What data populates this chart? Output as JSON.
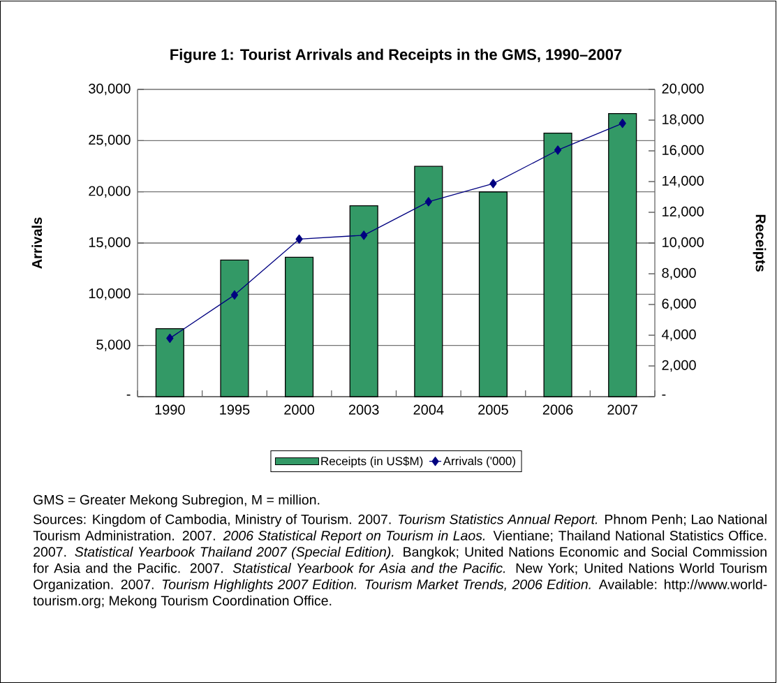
{
  "chart_data": {
    "type": "bar",
    "title": "Figure 1: Tourist Arrivals and Receipts in the GMS, 1990–2007",
    "categories": [
      "1990",
      "1995",
      "2000",
      "2003",
      "2004",
      "2005",
      "2006",
      "2007"
    ],
    "series": [
      {
        "name": "Receipts (in US$M)",
        "axis": "y2",
        "color": "#339966",
        "values": [
          4430,
          8890,
          9070,
          12430,
          14990,
          13330,
          17150,
          18430
        ]
      },
      {
        "name": "Arrivals ('000)",
        "type": "line",
        "color": "#000080",
        "values": [
          5700,
          9930,
          15380,
          15760,
          19030,
          20800,
          24070,
          26690
        ]
      }
    ],
    "ylabel": "Arrivals",
    "y2label": "Receipts",
    "ylim": [
      0,
      30000
    ],
    "yticks": [
      {
        "value": 0,
        "label": "-"
      },
      {
        "value": 5000,
        "label": "5,000"
      },
      {
        "value": 10000,
        "label": "10,000"
      },
      {
        "value": 15000,
        "label": "15,000"
      },
      {
        "value": 20000,
        "label": "20,000"
      },
      {
        "value": 25000,
        "label": "25,000"
      },
      {
        "value": 30000,
        "label": "30,000"
      }
    ],
    "y2lim": [
      0,
      20000
    ],
    "y2ticks": [
      {
        "value": 0,
        "label": "-"
      },
      {
        "value": 2000,
        "label": "2,000"
      },
      {
        "value": 4000,
        "label": "4,000"
      },
      {
        "value": 6000,
        "label": "6,000"
      },
      {
        "value": 8000,
        "label": "8,000"
      },
      {
        "value": 10000,
        "label": "10,000"
      },
      {
        "value": 12000,
        "label": "12,000"
      },
      {
        "value": 14000,
        "label": "14,000"
      },
      {
        "value": 16000,
        "label": "16,000"
      },
      {
        "value": 18000,
        "label": "18,000"
      },
      {
        "value": 20000,
        "label": "20,000"
      }
    ],
    "grid": "y",
    "legend": "bottom",
    "marker": "diamond",
    "line_style": "solid",
    "annotations": [
      "GMS = Greater Mekong Subregion, M = million.",
      "Sources: Kingdom of Cambodia, Ministry of Tourism. 2007. *Tourism Statistics Annual Report.* Phnom Penh; Lao National Tourism Administration. 2007. *2006 Statistical Report on Tourism in Laos.* Vientiane; Thailand National Statistics Office. 2007. *Statistical Yearbook Thailand 2007 (Special Edition).* Bangkok; United Nations Economic and Social Commission for Asia and the Pacific. 2007. *Statistical Yearbook for Asia and the Pacific.* New York; United Nations World Tourism Organization. 2007. *Tourism Highlights 2007 Edition. Tourism Market Trends, 2006 Edition.* Available: http://www.world-tourism.org; Mekong Tourism Coordination Office."
    ]
  }
}
